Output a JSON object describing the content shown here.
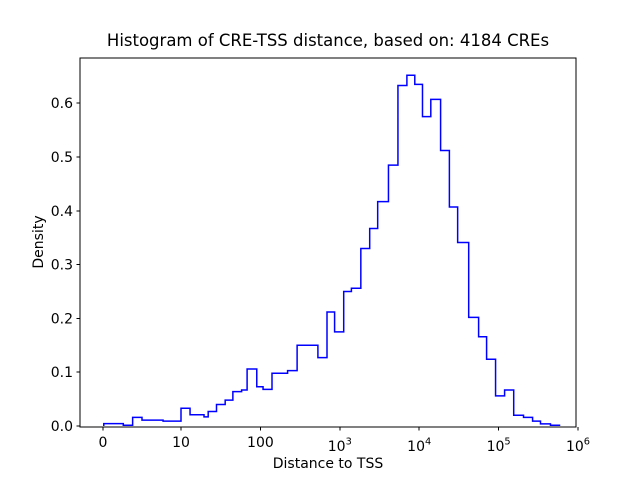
{
  "title": "Histogram of CRE-TSS distance, based on: 4184 CREs",
  "chart_data": {
    "type": "histogram-step",
    "title": "Histogram of CRE-TSS distance, based on: 4184 CREs",
    "xlabel": "Distance to TSS",
    "ylabel": "Density",
    "x_scale": "symlog",
    "x_linthresh": 10,
    "grid": false,
    "legend": "none",
    "line_color": "#0000ff",
    "axes_color": "#000000",
    "ylim": [
      0,
      0.685
    ],
    "y_ticks": [
      "0.0",
      "0.1",
      "0.2",
      "0.3",
      "0.4",
      "0.5",
      "0.6"
    ],
    "y_tick_values": [
      0.0,
      0.1,
      0.2,
      0.3,
      0.4,
      0.5,
      0.6
    ],
    "x_ticks": [
      {
        "value": 0,
        "label": "0"
      },
      {
        "value": 10,
        "label": "10"
      },
      {
        "value": 100,
        "label": "100"
      },
      {
        "value": 1000,
        "label": "10^3"
      },
      {
        "value": 10000,
        "label": "10^4"
      },
      {
        "value": 100000,
        "label": "10^5"
      },
      {
        "value": 1000000,
        "label": "10^6"
      }
    ],
    "bin_edges": [
      0.1,
      2.6,
      3.8,
      5,
      6.3,
      7.7,
      10,
      13,
      19.5,
      22,
      28,
      36,
      45,
      58,
      68,
      90,
      108,
      140,
      220,
      290,
      530,
      690,
      860,
      1120,
      1400,
      1840,
      2380,
      3000,
      4100,
      5400,
      7000,
      8800,
      11000,
      14000,
      18600,
      24000,
      30500,
      42000,
      56000,
      70600,
      91600,
      119000,
      155000,
      206000,
      268000,
      337000,
      450000,
      585000
    ],
    "densities": [
      0.0045,
      0.0015,
      0.016,
      0.011,
      0.011,
      0.009,
      0.033,
      0.021,
      0.017,
      0.027,
      0.04,
      0.048,
      0.064,
      0.067,
      0.106,
      0.073,
      0.068,
      0.098,
      0.103,
      0.15,
      0.127,
      0.212,
      0.175,
      0.25,
      0.256,
      0.33,
      0.367,
      0.417,
      0.485,
      0.633,
      0.652,
      0.635,
      0.575,
      0.607,
      0.512,
      0.407,
      0.341,
      0.202,
      0.166,
      0.124,
      0.056,
      0.067,
      0.02,
      0.016,
      0.009,
      0.004,
      0.0013
    ]
  }
}
